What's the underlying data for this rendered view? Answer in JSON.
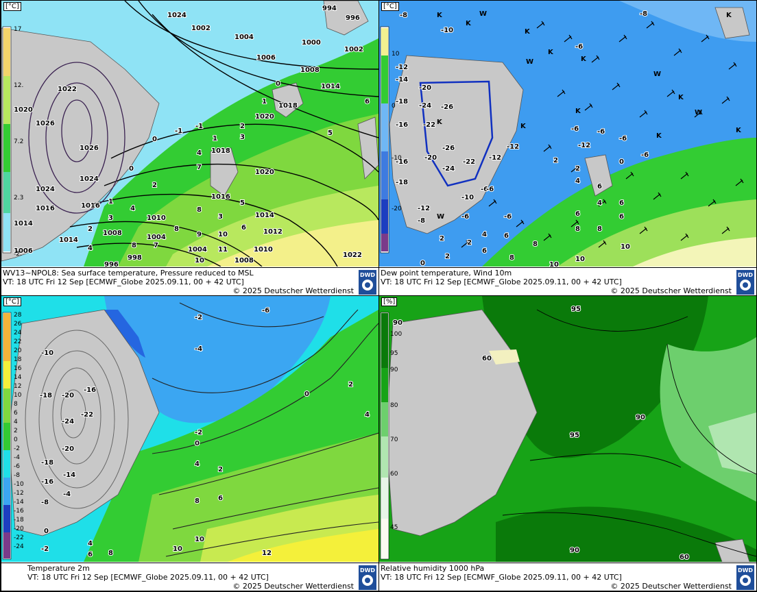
{
  "panels": [
    {
      "id": "sst_mslp",
      "title": "WV13~NPOL8: Sea surface temperature,  Pressure reduced to MSL",
      "valid": "VT: 18 UTC Fri  12 Sep [ECMWF_Globe 2025.09.11, 00 + 42 UTC]",
      "copyright": "© 2025 Deutscher Wetterdienst",
      "logo": "DWD",
      "unit": "[°C]",
      "scale": [
        "17",
        "12.",
        "7.2",
        "2.3",
        "-2."
      ],
      "isobar_labels": [
        "994",
        "996",
        "998",
        "1000",
        "1002",
        "1004",
        "1006",
        "1008",
        "1010",
        "1012",
        "1014",
        "1016",
        "1018",
        "1020",
        "1022",
        "1024",
        "1026"
      ],
      "sst_labels": [
        "-1",
        "0",
        "1",
        "2",
        "3",
        "4",
        "5",
        "6",
        "7",
        "8",
        "9",
        "10",
        "11"
      ]
    },
    {
      "id": "dewpoint_wind",
      "title": "Dew point temperature, Wind 10m",
      "valid": "VT: 18 UTC Fri  12 Sep [ECMWF_Globe 2025.09.11,  00 + 42 UTC]",
      "copyright": "© 2025 Deutscher Wetterdienst",
      "logo": "DWD",
      "unit": "[°C]",
      "scale": [
        "10",
        "0",
        "-10",
        "-20"
      ],
      "labels": [
        "-6",
        "-8",
        "-10",
        "-12",
        "-14",
        "-16",
        "-18",
        "-20",
        "-22",
        "-24",
        "-26",
        "0",
        "2",
        "4",
        "6",
        "8",
        "10"
      ],
      "marks": [
        "K",
        "W"
      ]
    },
    {
      "id": "temp2m",
      "title": "Temperature 2m",
      "valid": "VT: 18 UTC Fri  12 Sep [ECMWF_Globe 2025.09.11, 00 + 42 UTC]",
      "copyright": "© 2025 Deutscher Wetterdienst",
      "logo": "DWD",
      "unit": "[°C]",
      "scale": [
        "28",
        "26",
        "24",
        "22",
        "20",
        "18",
        "16",
        "14",
        "12",
        "10",
        "8",
        "6",
        "4",
        "2",
        "0",
        "-2",
        "-4",
        "-6",
        "-8",
        "-10",
        "-12",
        "-14",
        "-16",
        "-18",
        "-20",
        "-22",
        "-24"
      ],
      "labels": [
        "-6",
        "-2",
        "-4",
        "-10",
        "-16",
        "-18",
        "-20",
        "-22",
        "-24",
        "-14",
        "-8",
        "0",
        "2",
        "4",
        "6",
        "8",
        "10",
        "12"
      ]
    },
    {
      "id": "rh1000",
      "title": "Relative humidity 1000 hPa",
      "valid": "VT: 18 UTC Fri  12 Sep [ECMWF_Globe 2025.09.11, 00 + 42 UTC]",
      "copyright": "© 2025 Deutscher Wetterdienst",
      "logo": "DWD",
      "unit": "[%]",
      "scale": [
        "100",
        "95",
        "90",
        "80",
        "70",
        "60",
        "45"
      ],
      "labels": [
        "90",
        "95",
        "60"
      ]
    }
  ],
  "colors": {
    "land": "#c8c8c8",
    "sea_cold": "#8fe3f5",
    "sea_green": "#33cc33",
    "sea_lightgreen": "#9de05a",
    "sea_yellow": "#f3f08a",
    "dp_blue": "#3e9cf0",
    "dp_dark": "#1f6fe0",
    "t_yellow": "#f4f03a",
    "rh_dark": "#0a7a0a",
    "rh_mid": "#17a317",
    "rh_light": "#6dcf6d"
  }
}
